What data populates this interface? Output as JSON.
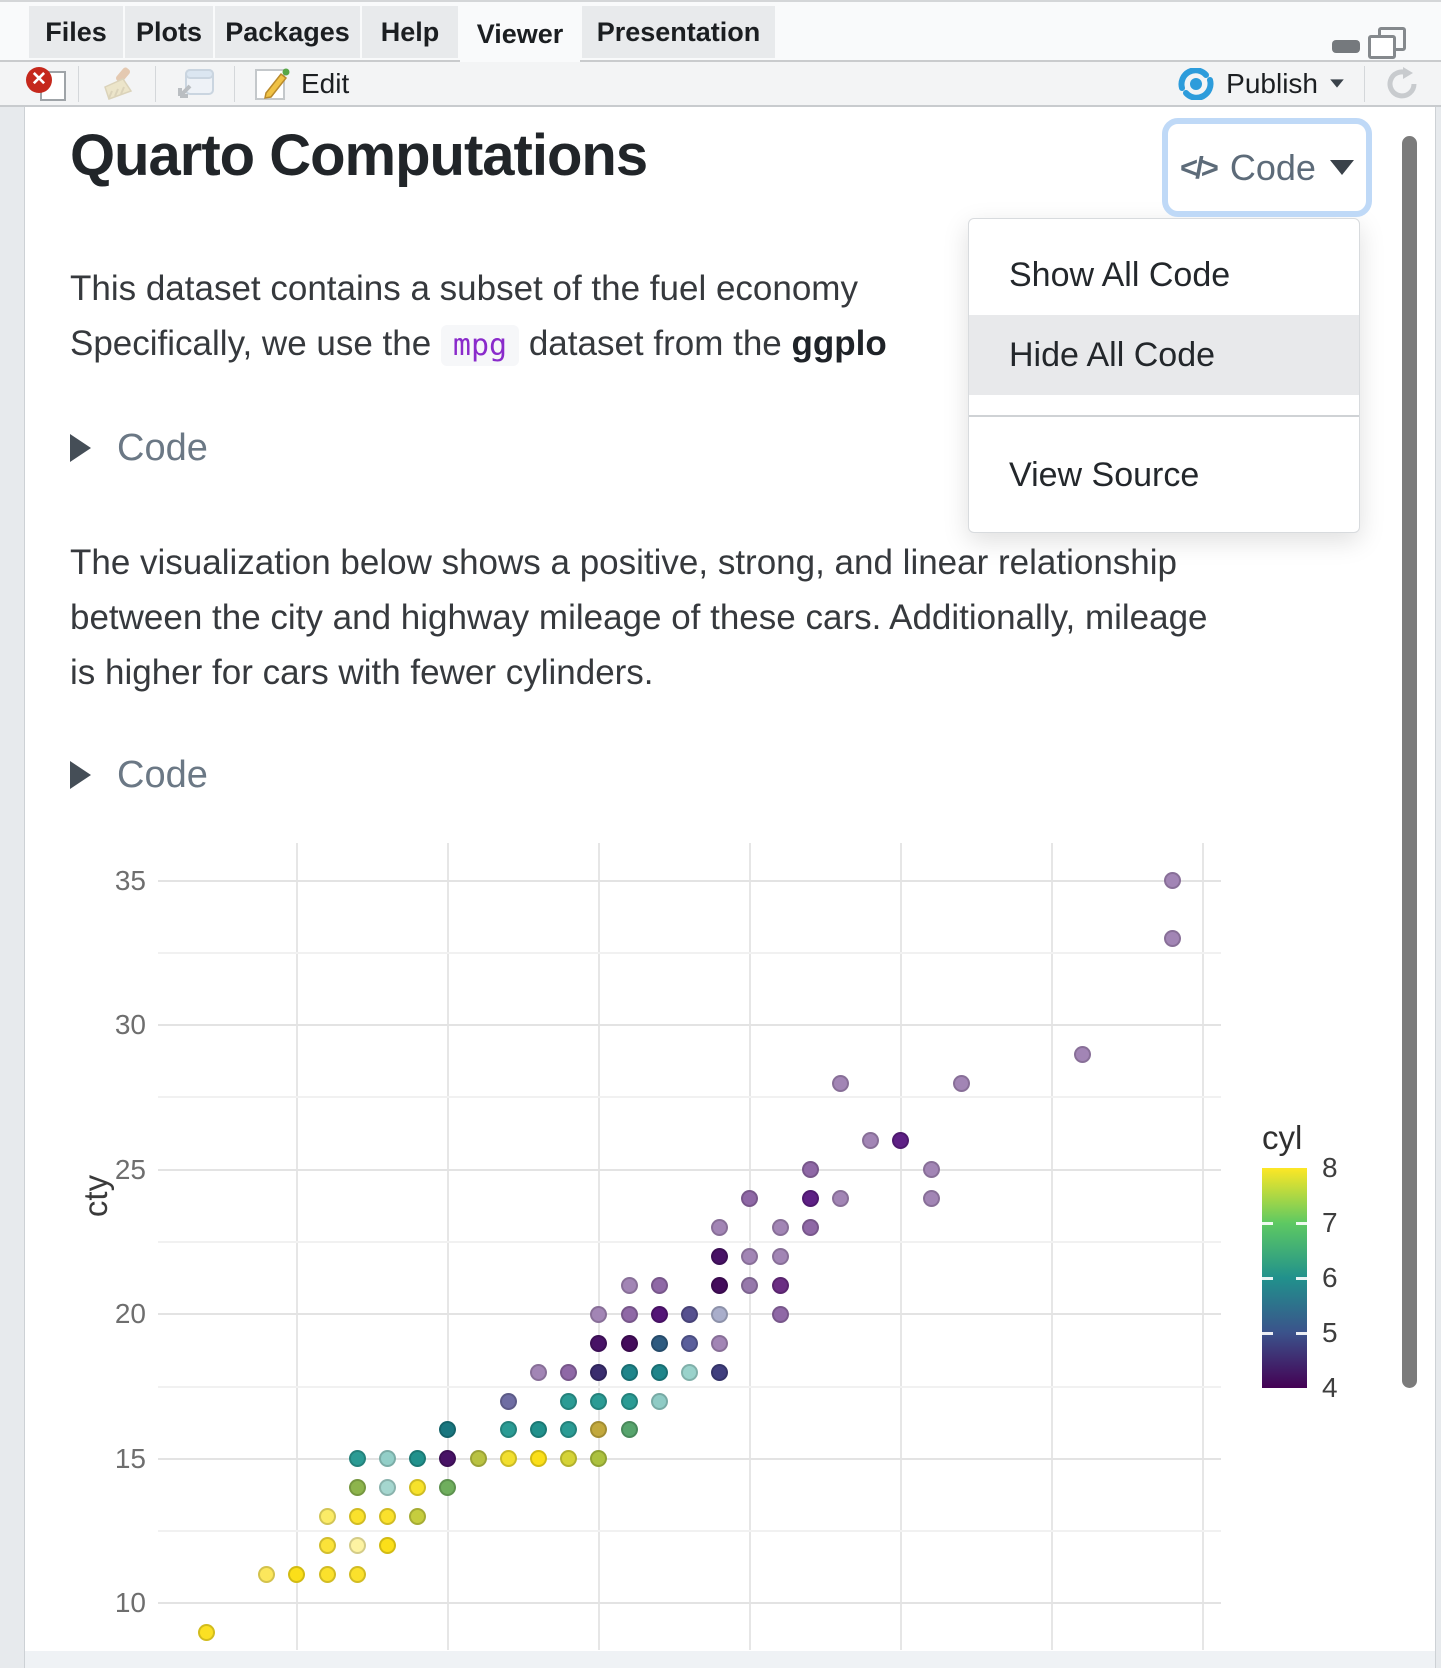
{
  "window": {
    "tabs": [
      {
        "label": "Files"
      },
      {
        "label": "Plots"
      },
      {
        "label": "Packages"
      },
      {
        "label": "Help"
      },
      {
        "label": "Viewer",
        "active": true
      },
      {
        "label": "Presentation"
      }
    ]
  },
  "toolbar": {
    "edit_label": "Edit",
    "publish_label": "Publish"
  },
  "document": {
    "title": "Quarto Computations",
    "para1_line1": "This dataset contains a subset of the fuel economy",
    "para1_line2_pre": "Specifically, we use the ",
    "para1_code": "mpg",
    "para1_line2_mid": " dataset from the ",
    "para1_line2_bold": "ggplo",
    "fold1_label": "Code",
    "fold2_label": "Code",
    "para2_lines": [
      "The visualization below shows a positive, strong, and linear relationship",
      "between the city and highway mileage of these cars. Additionally, mileage",
      "is higher for cars with fewer cylinders."
    ]
  },
  "code_menu": {
    "button_label": "Code",
    "items": [
      {
        "label": "Show All Code",
        "highlighted": false
      },
      {
        "label": "Hide All Code",
        "highlighted": true
      },
      {
        "label": "View Source",
        "highlighted": false
      }
    ]
  },
  "colors": {
    "focus_ring": "#BFD9F7",
    "publish_blue": "#2D9CDB",
    "stop_red": "#C5281C",
    "inline_code_purple": "#8A2BCB",
    "menu_highlight": "#E8E9EB"
  },
  "chart_data": {
    "type": "scatter",
    "ylabel": "cty",
    "legend_title": "cyl",
    "legend_ticks": [
      8,
      7,
      6,
      5,
      4
    ],
    "legend_colors": {
      "8": "#FDE725",
      "7": "#5EC962",
      "6": "#21918C",
      "5": "#3B528B",
      "4": "#440154"
    },
    "y_ticks": [
      35,
      30,
      25,
      20,
      15,
      10
    ],
    "y_minor_gridlines": [
      12.5,
      17.5,
      22.5,
      27.5,
      32.5
    ],
    "x_gridlines": [
      15,
      20,
      25,
      30,
      35,
      40,
      45
    ],
    "x_range_shown": [
      10.4,
      45.6
    ],
    "y_range_shown": [
      7.7,
      36.3
    ],
    "grid": "major horizontal + minor horizontal + major vertical, white panel",
    "legend_position": "right",
    "points_format": [
      "hwy",
      "cty",
      "rendered_color (viridis cyl 4-8, alpha-blended)"
    ],
    "points": [
      [
        44,
        35,
        "#A285B5"
      ],
      [
        44,
        33,
        "#A285B5"
      ],
      [
        41,
        29,
        "#A285B5"
      ],
      [
        37,
        28,
        "#A285B5"
      ],
      [
        33,
        28,
        "#A285B5"
      ],
      [
        34,
        26,
        "#A285B5"
      ],
      [
        35,
        26,
        "#5E2085"
      ],
      [
        32,
        25,
        "#8F68A6"
      ],
      [
        36,
        25,
        "#A285B5"
      ],
      [
        30,
        24,
        "#8F68A6"
      ],
      [
        32,
        24,
        "#5E2085"
      ],
      [
        33,
        24,
        "#A285B5"
      ],
      [
        36,
        24,
        "#A285B5"
      ],
      [
        29,
        23,
        "#A285B5"
      ],
      [
        31,
        23,
        "#A285B5"
      ],
      [
        32,
        23,
        "#8F68A6"
      ],
      [
        29,
        22,
        "#481266"
      ],
      [
        30,
        22,
        "#A285B5"
      ],
      [
        31,
        22,
        "#A285B5"
      ],
      [
        26,
        21,
        "#A285B5"
      ],
      [
        27,
        21,
        "#8F68A6"
      ],
      [
        29,
        21,
        "#440C5C"
      ],
      [
        30,
        21,
        "#9678AB"
      ],
      [
        31,
        21,
        "#6B2D83"
      ],
      [
        25,
        20,
        "#A285B5"
      ],
      [
        26,
        20,
        "#8F68A6"
      ],
      [
        27,
        20,
        "#541577"
      ],
      [
        28,
        20,
        "#56508F"
      ],
      [
        29,
        20,
        "#A9AECB"
      ],
      [
        31,
        20,
        "#8F68A6"
      ],
      [
        25,
        19,
        "#481266"
      ],
      [
        26,
        19,
        "#440C5C"
      ],
      [
        27,
        19,
        "#2E5B80"
      ],
      [
        28,
        19,
        "#5A5E9B"
      ],
      [
        29,
        19,
        "#A285B5"
      ],
      [
        23,
        18,
        "#A285B5"
      ],
      [
        24,
        18,
        "#8F68A6"
      ],
      [
        25,
        18,
        "#3A2D6E"
      ],
      [
        26,
        18,
        "#1F858A"
      ],
      [
        27,
        18,
        "#1F858A"
      ],
      [
        28,
        18,
        "#9AD2CB"
      ],
      [
        29,
        18,
        "#403E7E"
      ],
      [
        22,
        17,
        "#6F6DA3"
      ],
      [
        24,
        17,
        "#2B9B94"
      ],
      [
        25,
        17,
        "#2B9B94"
      ],
      [
        26,
        17,
        "#2B9B94"
      ],
      [
        27,
        17,
        "#8FCBC5"
      ],
      [
        20,
        16,
        "#19767F"
      ],
      [
        22,
        16,
        "#2B9B94"
      ],
      [
        23,
        16,
        "#21918C"
      ],
      [
        24,
        16,
        "#2B9B94"
      ],
      [
        25,
        16,
        "#C2A83D"
      ],
      [
        26,
        16,
        "#57A46D"
      ],
      [
        17,
        15,
        "#2B9B94"
      ],
      [
        18,
        15,
        "#93CFC8"
      ],
      [
        19,
        15,
        "#21918C"
      ],
      [
        20,
        15,
        "#481266"
      ],
      [
        21,
        15,
        "#B9C242"
      ],
      [
        22,
        15,
        "#F2DF2E"
      ],
      [
        23,
        15,
        "#FBDF19"
      ],
      [
        24,
        15,
        "#D5D336"
      ],
      [
        25,
        15,
        "#ACC13F"
      ],
      [
        17,
        14,
        "#8DB44C"
      ],
      [
        18,
        14,
        "#A5D6CF"
      ],
      [
        19,
        14,
        "#F7E22B"
      ],
      [
        20,
        14,
        "#6FAE5D"
      ],
      [
        16,
        13,
        "#FBEB67"
      ],
      [
        17,
        13,
        "#FAE12C"
      ],
      [
        18,
        13,
        "#FAE12C"
      ],
      [
        19,
        13,
        "#C6CD3E"
      ],
      [
        16,
        12,
        "#FBE339"
      ],
      [
        17,
        12,
        "#FDF3A2"
      ],
      [
        18,
        12,
        "#FBDF19"
      ],
      [
        14,
        11,
        "#FCE75C"
      ],
      [
        15,
        11,
        "#FBDF19"
      ],
      [
        16,
        11,
        "#FBE12C"
      ],
      [
        17,
        11,
        "#FBE12C"
      ],
      [
        12,
        9,
        "#FBE023"
      ]
    ]
  }
}
